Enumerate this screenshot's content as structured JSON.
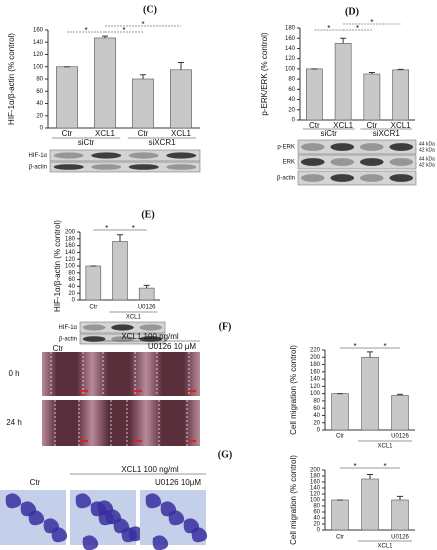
{
  "chart_data": [
    {
      "type": "bar",
      "panel_label": "(C)",
      "y_label": "HIF-1α/β-actin (% control)",
      "categories": [
        "Ctr",
        "XCL1",
        "Ctr",
        "XCL1"
      ],
      "values": [
        100,
        147,
        80,
        95
      ],
      "errors": [
        0,
        3,
        7,
        12
      ],
      "ylim": [
        0,
        160
      ],
      "yticks": [
        0,
        20,
        40,
        60,
        80,
        100,
        120,
        140,
        160
      ],
      "color": "#c8c8c8",
      "group_labels": [
        "siCtr",
        "siXCR1"
      ],
      "significance_labels": [
        "*",
        "*",
        "*"
      ],
      "blot_labels": [
        "HIF-1α",
        "β-actin"
      ]
    },
    {
      "type": "bar",
      "panel_label": "(D)",
      "y_label": "p-ERK/ERK (% control)",
      "categories": [
        "Ctr",
        "XCL1",
        "Ctr",
        "XCL1"
      ],
      "values": [
        100,
        150,
        90,
        98
      ],
      "errors": [
        0,
        10,
        3,
        1
      ],
      "ylim": [
        0,
        180
      ],
      "yticks": [
        0,
        20,
        40,
        60,
        80,
        100,
        120,
        140,
        160,
        180
      ],
      "color": "#c8c8c8",
      "group_labels": [
        "siCtr",
        "siXCR1"
      ],
      "significance_labels": [
        "*",
        "*",
        "*"
      ],
      "blot_labels": [
        "p-ERK",
        "ERK",
        "β-actin"
      ],
      "kda_labels": [
        "44 kDa",
        "42 kDa",
        "44 kDa",
        "42 kDa"
      ]
    },
    {
      "type": "bar",
      "panel_label": "(E)",
      "y_label": "HIF-1α/β-actin (% control)",
      "categories": [
        "Ctr",
        null,
        "U0126"
      ],
      "values": [
        100,
        172,
        35
      ],
      "errors": [
        0,
        20,
        8
      ],
      "ylim": [
        0,
        200
      ],
      "yticks": [
        0,
        20,
        40,
        60,
        80,
        100,
        120,
        140,
        160,
        180,
        200
      ],
      "color": "#c8c8c8",
      "group_labels": [
        "XCL1"
      ],
      "significance_labels": [
        "*",
        "*"
      ],
      "blot_labels": [
        "HIF-1α",
        "β-actin"
      ]
    },
    {
      "type": "bar",
      "panel_label": "(F)",
      "y_label": "Cell migration (% control)",
      "categories": [
        "Ctr",
        null,
        "U0126"
      ],
      "values": [
        100,
        200,
        95
      ],
      "errors": [
        0,
        15,
        3
      ],
      "ylim": [
        0,
        220
      ],
      "yticks": [
        0,
        20,
        40,
        60,
        80,
        100,
        120,
        140,
        160,
        180,
        200,
        220
      ],
      "color": "#c8c8c8",
      "group_labels": [
        "XCL1"
      ],
      "significance_labels": [
        "*",
        "*"
      ],
      "image_labels": {
        "treatment": "XCL1 100 ng/ml",
        "control": "Ctr",
        "inhibitor": "U0126 10 μM",
        "rows": [
          "0 h",
          "24 h"
        ]
      }
    },
    {
      "type": "bar",
      "panel_label": "(G)",
      "y_label": "Cell migration (% control)",
      "categories": [
        "Ctr",
        null,
        "U0126"
      ],
      "values": [
        100,
        170,
        100
      ],
      "errors": [
        0,
        15,
        12
      ],
      "ylim": [
        0,
        200
      ],
      "yticks": [
        0,
        20,
        40,
        60,
        80,
        100,
        120,
        140,
        160,
        180,
        200
      ],
      "color": "#c8c8c8",
      "group_labels": [
        "XCL1"
      ],
      "significance_labels": [
        "*",
        "*"
      ],
      "image_labels": {
        "treatment": "XCL1 100 ng/ml",
        "control": "Ctr",
        "inhibitor": "U0126 10μM"
      }
    }
  ]
}
